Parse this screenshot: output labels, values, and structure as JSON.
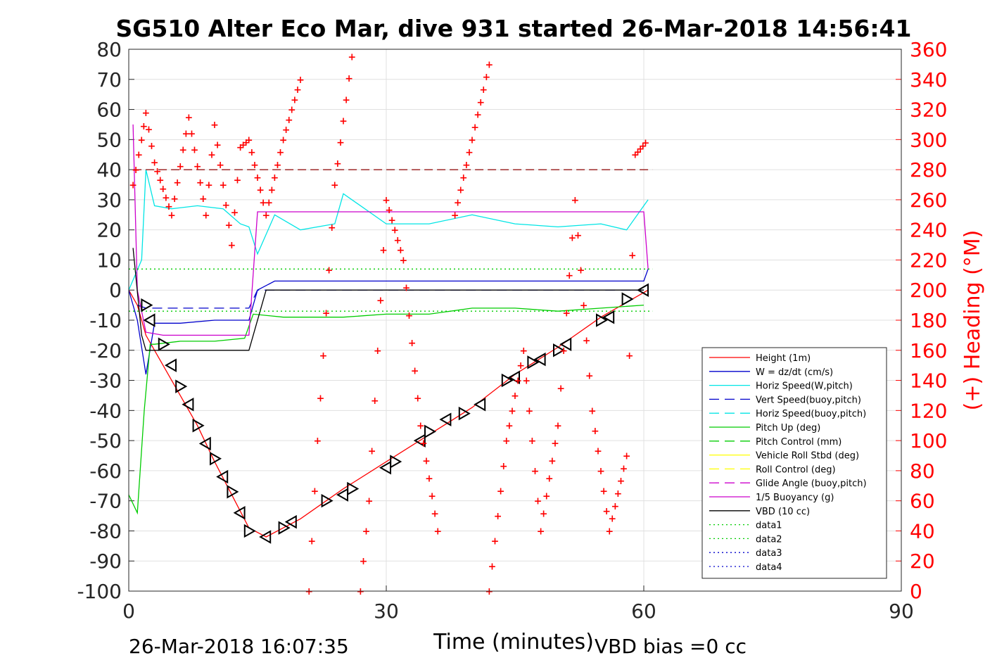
{
  "chart_data": {
    "type": "line",
    "title": "SG510 Alter Eco Mar, dive 931 started 26-Mar-2018 14:56:41",
    "xlabel": "Time (minutes)",
    "ylabel_right": "(+) Heading (°M)",
    "xlim": [
      0,
      90
    ],
    "ylim": [
      -100,
      80
    ],
    "ylim_right": [
      0,
      360
    ],
    "x_ticks": [
      "0",
      "30",
      "60",
      "90"
    ],
    "y_ticks": [
      "80",
      "70",
      "60",
      "50",
      "40",
      "30",
      "20",
      "10",
      "0",
      "-10",
      "-20",
      "-30",
      "-40",
      "-50",
      "-60",
      "-70",
      "-80",
      "-90",
      "-100"
    ],
    "y_right_ticks": [
      "360",
      "340",
      "320",
      "300",
      "280",
      "260",
      "240",
      "220",
      "200",
      "180",
      "160",
      "140",
      "120",
      "100",
      "80",
      "60",
      "40",
      "20",
      "0"
    ],
    "grid": true,
    "legend_position": "bottom-right",
    "footer_left": "26-Mar-2018 16:07:35",
    "footer_right": "VBD bias =0 cc",
    "colors": {
      "red": "#ff0000",
      "blue": "#0000cc",
      "cyan": "#00e5e5",
      "green": "#00cc00",
      "yellow": "#ffff00",
      "magenta": "#cc00cc",
      "black": "#000000",
      "darkred": "#8b0000"
    },
    "legend": [
      {
        "name": "Height (1m)",
        "color": "#ff0000",
        "dash": "solid"
      },
      {
        "name": "W = dz/dt (cm/s)",
        "color": "#0000cc",
        "dash": "solid"
      },
      {
        "name": "Horiz Speed(W,pitch)",
        "color": "#00e5e5",
        "dash": "solid"
      },
      {
        "name": "Vert Speed(buoy,pitch)",
        "color": "#0000cc",
        "dash": "dashed"
      },
      {
        "name": "Horiz Speed(buoy,pitch)",
        "color": "#00e5e5",
        "dash": "dashed"
      },
      {
        "name": "Pitch Up (deg)",
        "color": "#00cc00",
        "dash": "solid"
      },
      {
        "name": "Pitch Control (mm)",
        "color": "#00cc00",
        "dash": "dashed"
      },
      {
        "name": "Vehicle Roll Stbd (deg)",
        "color": "#ffff00",
        "dash": "solid"
      },
      {
        "name": "Roll Control (deg)",
        "color": "#ffff00",
        "dash": "dashed"
      },
      {
        "name": "Glide Angle (buoy,pitch)",
        "color": "#cc00cc",
        "dash": "dashed"
      },
      {
        "name": "1/5 Buoyancy (g)",
        "color": "#cc00cc",
        "dash": "solid"
      },
      {
        "name": "VBD (10 cc)",
        "color": "#000000",
        "dash": "solid"
      },
      {
        "name": "data1",
        "color": "#00cc00",
        "dash": "dotted"
      },
      {
        "name": "data2",
        "color": "#00cc00",
        "dash": "dotted"
      },
      {
        "name": "data3",
        "color": "#0000cc",
        "dash": "dotted"
      },
      {
        "name": "data4",
        "color": "#0000cc",
        "dash": "dotted"
      }
    ],
    "series": [
      {
        "name": "Height (1m)",
        "x": [
          0,
          1,
          2,
          4,
          6,
          8,
          10,
          12,
          14,
          16,
          20,
          25,
          30,
          35,
          40,
          45,
          50,
          55,
          60.5
        ],
        "y": [
          0,
          -5,
          -15,
          -25,
          -35,
          -45,
          -57,
          -68,
          -79,
          -82,
          -76,
          -66,
          -57,
          -48,
          -39,
          -28,
          -19,
          -9,
          0
        ]
      },
      {
        "name": "W = dz/dt (cm/s)",
        "x": [
          0,
          1,
          2,
          3,
          6,
          10,
          14,
          15,
          17,
          25,
          35,
          45,
          55,
          60,
          60.5
        ],
        "y": [
          0,
          -10,
          -28,
          -11,
          -11,
          -10,
          -10,
          0,
          3,
          3,
          3,
          3,
          3,
          3,
          7
        ]
      },
      {
        "name": "Horiz Speed(W,pitch)",
        "x": [
          0,
          1.5,
          2,
          3,
          5,
          8,
          11,
          13,
          14,
          15,
          17,
          20,
          24,
          25,
          30,
          35,
          40,
          45,
          50,
          55,
          58,
          60,
          60.5
        ],
        "y": [
          0,
          10,
          40,
          28,
          27,
          28,
          27,
          22,
          21,
          12,
          25,
          20,
          22,
          32,
          22,
          22,
          25,
          22,
          21,
          22,
          20,
          28,
          30
        ]
      },
      {
        "name": "Vert Speed(buoy,pitch)",
        "x": [
          1,
          2,
          4,
          14,
          15,
          60
        ],
        "y": [
          -5,
          -6,
          -6,
          -6,
          0,
          0
        ]
      },
      {
        "name": "Pitch Up (deg)",
        "x": [
          0,
          1,
          1.8,
          2.5,
          3,
          6,
          10,
          13.5,
          14.5,
          18,
          25,
          30,
          35,
          40,
          45,
          50,
          55,
          60
        ],
        "y": [
          -68,
          -74,
          -40,
          -18,
          -18,
          -17,
          -17,
          -16,
          -8,
          -9,
          -9,
          -8,
          -8,
          -6,
          -6,
          -7,
          -6,
          -5
        ]
      },
      {
        "name": "1/5 Buoyancy (g)",
        "x": [
          0.5,
          1,
          2,
          4,
          14,
          15,
          30,
          60,
          60.5
        ],
        "y": [
          55,
          0,
          -14,
          -15,
          -15,
          26,
          26,
          26,
          7
        ]
      },
      {
        "name": "VBD (10 cc)",
        "x": [
          0.5,
          1.5,
          2,
          14,
          16,
          60
        ],
        "y": [
          14,
          -15,
          -20,
          -20,
          0,
          0
        ]
      },
      {
        "name": "data1",
        "x": [
          0,
          61
        ],
        "y": [
          7,
          7
        ]
      },
      {
        "name": "data2",
        "x": [
          0,
          61
        ],
        "y": [
          -7,
          -7
        ]
      }
    ],
    "heading_points_deg": [
      [
        0.5,
        270
      ],
      [
        1.5,
        300
      ],
      [
        2,
        318
      ],
      [
        3,
        285
      ],
      [
        5,
        250
      ],
      [
        7,
        315
      ],
      [
        9,
        250
      ],
      [
        10,
        310
      ],
      [
        12,
        230
      ],
      [
        13,
        295
      ],
      [
        14,
        300
      ],
      [
        16,
        250
      ],
      [
        18,
        300
      ],
      [
        20,
        340
      ],
      [
        21,
        0
      ],
      [
        22,
        100
      ],
      [
        24,
        270
      ],
      [
        26,
        355
      ],
      [
        27,
        0
      ],
      [
        28,
        60
      ],
      [
        30,
        260
      ],
      [
        32,
        220
      ],
      [
        34,
        110
      ],
      [
        36,
        40
      ],
      [
        38,
        250
      ],
      [
        40,
        300
      ],
      [
        42,
        350
      ],
      [
        42,
        0
      ],
      [
        44,
        100
      ],
      [
        46,
        160
      ],
      [
        48,
        40
      ],
      [
        50,
        110
      ],
      [
        52,
        260
      ],
      [
        54,
        120
      ],
      [
        56,
        40
      ],
      [
        58,
        90
      ],
      [
        59,
        290
      ],
      [
        60.5,
        300
      ]
    ],
    "heading_constant_deg": 280,
    "vbd_markers": [
      [
        2,
        -5
      ],
      [
        2.5,
        -10
      ],
      [
        4,
        -18
      ],
      [
        5,
        -25
      ],
      [
        6,
        -32
      ],
      [
        7,
        -38
      ],
      [
        8,
        -45
      ],
      [
        9,
        -51
      ],
      [
        10,
        -56
      ],
      [
        11,
        -62
      ],
      [
        12,
        -67
      ],
      [
        13,
        -74
      ],
      [
        14,
        -80
      ],
      [
        16,
        -82
      ],
      [
        18,
        -79
      ],
      [
        19,
        -77
      ],
      [
        23,
        -70
      ],
      [
        25,
        -68
      ],
      [
        26,
        -66
      ],
      [
        30,
        -59
      ],
      [
        31,
        -57
      ],
      [
        34,
        -50
      ],
      [
        35,
        -47
      ],
      [
        37,
        -43
      ],
      [
        39,
        -41
      ],
      [
        41,
        -38
      ],
      [
        44,
        -30
      ],
      [
        45,
        -29
      ],
      [
        47,
        -24
      ],
      [
        48,
        -23
      ],
      [
        50,
        -20
      ],
      [
        51,
        -18
      ],
      [
        55,
        -10
      ],
      [
        56,
        -9
      ],
      [
        58,
        -3
      ],
      [
        60,
        0
      ]
    ]
  }
}
